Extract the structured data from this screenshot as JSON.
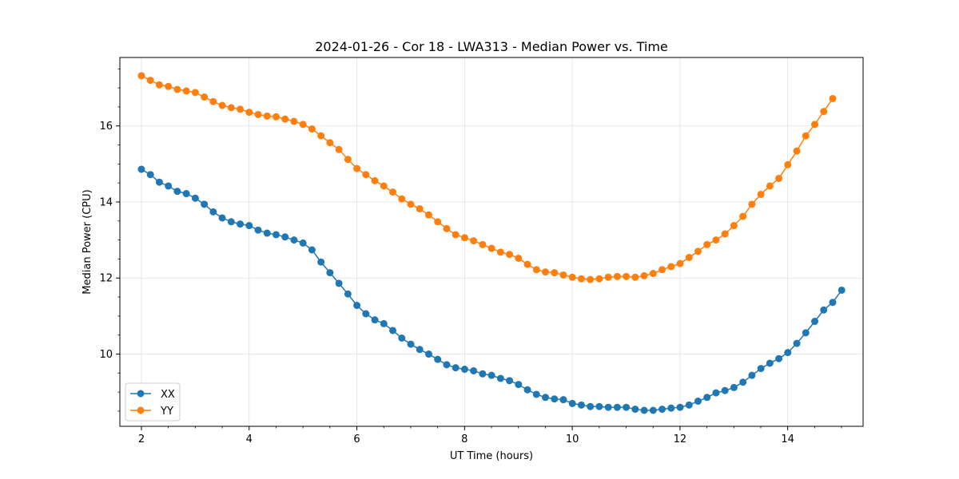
{
  "chart_data": {
    "type": "line",
    "title": "2024-01-26 - Cor 18 - LWA313 - Median Power vs. Time",
    "xlabel": "UT Time (hours)",
    "ylabel": "Median Power (CPU)",
    "xlim": [
      1.6,
      15.4
    ],
    "ylim": [
      8.1,
      17.8
    ],
    "xticks": [
      2,
      4,
      6,
      8,
      10,
      12,
      14
    ],
    "xtick_labels": [
      "2",
      "4",
      "6",
      "8",
      "10",
      "12",
      "14"
    ],
    "yticks": [
      10,
      12,
      14,
      16
    ],
    "ytick_labels": [
      "10",
      "12",
      "14",
      "16"
    ],
    "grid": true,
    "legend_position": "lower-left",
    "x_start": 2.0,
    "x_step": 0.1667,
    "series": [
      {
        "name": "XX",
        "color": "#1f77b4",
        "marker": "circle",
        "values": [
          14.86,
          14.72,
          14.52,
          14.42,
          14.28,
          14.22,
          14.1,
          13.94,
          13.74,
          13.58,
          13.48,
          13.42,
          13.38,
          13.26,
          13.18,
          13.14,
          13.08,
          13.0,
          12.92,
          12.74,
          12.42,
          12.14,
          11.86,
          11.58,
          11.28,
          11.06,
          10.9,
          10.8,
          10.62,
          10.42,
          10.26,
          10.12,
          10.0,
          9.86,
          9.72,
          9.64,
          9.6,
          9.56,
          9.48,
          9.44,
          9.36,
          9.3,
          9.2,
          9.06,
          8.94,
          8.86,
          8.82,
          8.8,
          8.7,
          8.66,
          8.62,
          8.62,
          8.6,
          8.6,
          8.6,
          8.55,
          8.52,
          8.52,
          8.55,
          8.58,
          8.6,
          8.66,
          8.76,
          8.86,
          8.98,
          9.04,
          9.12,
          9.26,
          9.44,
          9.62,
          9.76,
          9.88,
          10.04,
          10.28,
          10.56,
          10.86,
          11.16,
          11.36,
          11.68
        ]
      },
      {
        "name": "YY",
        "color": "#ff7f0e",
        "marker": "circle",
        "values": [
          17.32,
          17.2,
          17.08,
          17.04,
          16.96,
          16.92,
          16.88,
          16.76,
          16.64,
          16.54,
          16.48,
          16.44,
          16.36,
          16.3,
          16.26,
          16.24,
          16.18,
          16.12,
          16.04,
          15.92,
          15.74,
          15.56,
          15.38,
          15.12,
          14.88,
          14.72,
          14.56,
          14.42,
          14.26,
          14.08,
          13.94,
          13.82,
          13.66,
          13.48,
          13.3,
          13.14,
          13.06,
          12.98,
          12.88,
          12.78,
          12.68,
          12.62,
          12.52,
          12.36,
          12.22,
          12.16,
          12.14,
          12.08,
          12.02,
          11.98,
          11.96,
          11.98,
          12.02,
          12.04,
          12.04,
          12.02,
          12.06,
          12.12,
          12.22,
          12.3,
          12.38,
          12.54,
          12.7,
          12.88,
          13.0,
          13.16,
          13.38,
          13.62,
          13.94,
          14.2,
          14.42,
          14.62,
          14.98,
          15.34,
          15.74,
          16.04,
          16.38,
          16.72
        ]
      }
    ]
  }
}
